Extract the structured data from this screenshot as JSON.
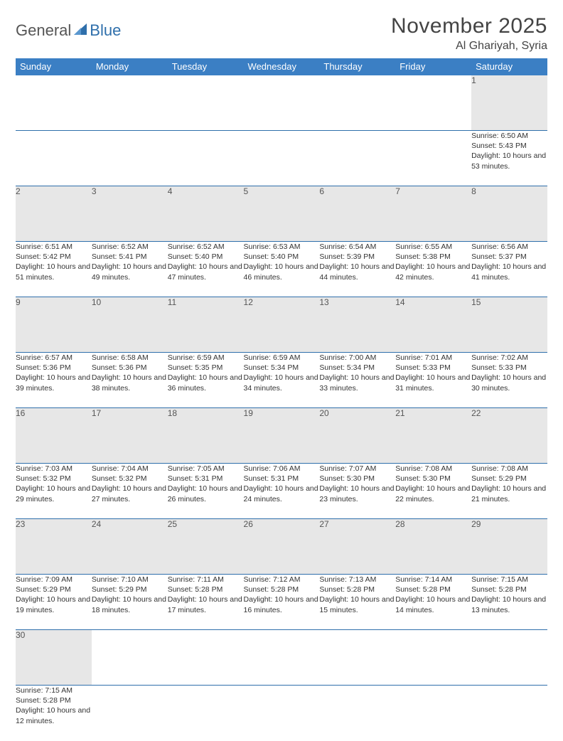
{
  "brand": {
    "part1": "General",
    "part2": "Blue"
  },
  "title": "November 2025",
  "location": "Al Ghariyah, Syria",
  "colors": {
    "header_bg": "#3b7fc4",
    "header_text": "#ffffff",
    "daynum_bg": "#e7e7e7",
    "row_border": "#2f6fab",
    "logo_accent": "#2f6fab",
    "logo_text": "#555555",
    "body_text": "#333333",
    "background": "#ffffff"
  },
  "weekdays": [
    "Sunday",
    "Monday",
    "Tuesday",
    "Wednesday",
    "Thursday",
    "Friday",
    "Saturday"
  ],
  "weeks": [
    [
      null,
      null,
      null,
      null,
      null,
      null,
      {
        "n": "1",
        "sunrise": "6:50 AM",
        "sunset": "5:43 PM",
        "daylight": "10 hours and 53 minutes."
      }
    ],
    [
      {
        "n": "2",
        "sunrise": "6:51 AM",
        "sunset": "5:42 PM",
        "daylight": "10 hours and 51 minutes."
      },
      {
        "n": "3",
        "sunrise": "6:52 AM",
        "sunset": "5:41 PM",
        "daylight": "10 hours and 49 minutes."
      },
      {
        "n": "4",
        "sunrise": "6:52 AM",
        "sunset": "5:40 PM",
        "daylight": "10 hours and 47 minutes."
      },
      {
        "n": "5",
        "sunrise": "6:53 AM",
        "sunset": "5:40 PM",
        "daylight": "10 hours and 46 minutes."
      },
      {
        "n": "6",
        "sunrise": "6:54 AM",
        "sunset": "5:39 PM",
        "daylight": "10 hours and 44 minutes."
      },
      {
        "n": "7",
        "sunrise": "6:55 AM",
        "sunset": "5:38 PM",
        "daylight": "10 hours and 42 minutes."
      },
      {
        "n": "8",
        "sunrise": "6:56 AM",
        "sunset": "5:37 PM",
        "daylight": "10 hours and 41 minutes."
      }
    ],
    [
      {
        "n": "9",
        "sunrise": "6:57 AM",
        "sunset": "5:36 PM",
        "daylight": "10 hours and 39 minutes."
      },
      {
        "n": "10",
        "sunrise": "6:58 AM",
        "sunset": "5:36 PM",
        "daylight": "10 hours and 38 minutes."
      },
      {
        "n": "11",
        "sunrise": "6:59 AM",
        "sunset": "5:35 PM",
        "daylight": "10 hours and 36 minutes."
      },
      {
        "n": "12",
        "sunrise": "6:59 AM",
        "sunset": "5:34 PM",
        "daylight": "10 hours and 34 minutes."
      },
      {
        "n": "13",
        "sunrise": "7:00 AM",
        "sunset": "5:34 PM",
        "daylight": "10 hours and 33 minutes."
      },
      {
        "n": "14",
        "sunrise": "7:01 AM",
        "sunset": "5:33 PM",
        "daylight": "10 hours and 31 minutes."
      },
      {
        "n": "15",
        "sunrise": "7:02 AM",
        "sunset": "5:33 PM",
        "daylight": "10 hours and 30 minutes."
      }
    ],
    [
      {
        "n": "16",
        "sunrise": "7:03 AM",
        "sunset": "5:32 PM",
        "daylight": "10 hours and 29 minutes."
      },
      {
        "n": "17",
        "sunrise": "7:04 AM",
        "sunset": "5:32 PM",
        "daylight": "10 hours and 27 minutes."
      },
      {
        "n": "18",
        "sunrise": "7:05 AM",
        "sunset": "5:31 PM",
        "daylight": "10 hours and 26 minutes."
      },
      {
        "n": "19",
        "sunrise": "7:06 AM",
        "sunset": "5:31 PM",
        "daylight": "10 hours and 24 minutes."
      },
      {
        "n": "20",
        "sunrise": "7:07 AM",
        "sunset": "5:30 PM",
        "daylight": "10 hours and 23 minutes."
      },
      {
        "n": "21",
        "sunrise": "7:08 AM",
        "sunset": "5:30 PM",
        "daylight": "10 hours and 22 minutes."
      },
      {
        "n": "22",
        "sunrise": "7:08 AM",
        "sunset": "5:29 PM",
        "daylight": "10 hours and 21 minutes."
      }
    ],
    [
      {
        "n": "23",
        "sunrise": "7:09 AM",
        "sunset": "5:29 PM",
        "daylight": "10 hours and 19 minutes."
      },
      {
        "n": "24",
        "sunrise": "7:10 AM",
        "sunset": "5:29 PM",
        "daylight": "10 hours and 18 minutes."
      },
      {
        "n": "25",
        "sunrise": "7:11 AM",
        "sunset": "5:28 PM",
        "daylight": "10 hours and 17 minutes."
      },
      {
        "n": "26",
        "sunrise": "7:12 AM",
        "sunset": "5:28 PM",
        "daylight": "10 hours and 16 minutes."
      },
      {
        "n": "27",
        "sunrise": "7:13 AM",
        "sunset": "5:28 PM",
        "daylight": "10 hours and 15 minutes."
      },
      {
        "n": "28",
        "sunrise": "7:14 AM",
        "sunset": "5:28 PM",
        "daylight": "10 hours and 14 minutes."
      },
      {
        "n": "29",
        "sunrise": "7:15 AM",
        "sunset": "5:28 PM",
        "daylight": "10 hours and 13 minutes."
      }
    ],
    [
      {
        "n": "30",
        "sunrise": "7:15 AM",
        "sunset": "5:28 PM",
        "daylight": "10 hours and 12 minutes."
      },
      null,
      null,
      null,
      null,
      null,
      null
    ]
  ],
  "labels": {
    "sunrise": "Sunrise:",
    "sunset": "Sunset:",
    "daylight": "Daylight:"
  }
}
